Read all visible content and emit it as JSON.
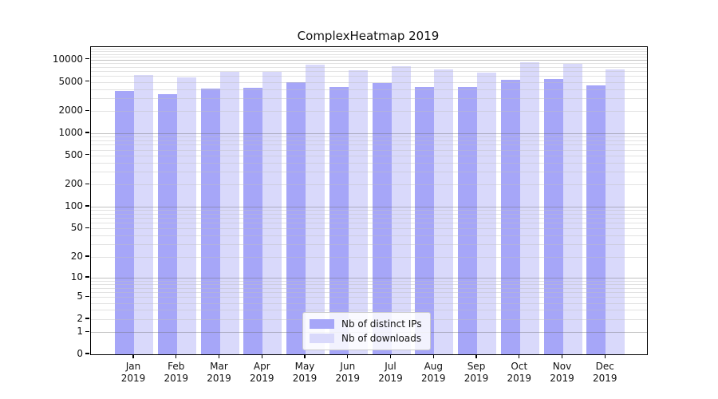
{
  "title": "ComplexHeatmap 2019",
  "chart_data": {
    "type": "bar",
    "title": "ComplexHeatmap 2019",
    "xlabel": "",
    "ylabel": "",
    "categories": [
      "Jan 2019",
      "Feb 2019",
      "Mar 2019",
      "Apr 2019",
      "May 2019",
      "Jun 2019",
      "Jul 2019",
      "Aug 2019",
      "Sep 2019",
      "Oct 2019",
      "Nov 2019",
      "Dec 2019"
    ],
    "series": [
      {
        "name": "Nb of distinct IPs",
        "color": "#a6a6f8",
        "values": [
          3760,
          3400,
          4080,
          4190,
          4900,
          4270,
          4800,
          4250,
          4230,
          5290,
          5420,
          4500
        ]
      },
      {
        "name": "Nb of downloads",
        "color": "#d9d9fb",
        "values": [
          6190,
          5690,
          6840,
          6840,
          8490,
          7120,
          8070,
          7370,
          6730,
          9230,
          8740,
          7330
        ]
      }
    ],
    "y_ticks": [
      0,
      1,
      2,
      5,
      10,
      20,
      50,
      100,
      200,
      500,
      1000,
      2000,
      5000,
      10000
    ],
    "y_scale": "log10(1+v)",
    "ylim": [
      0,
      14800
    ],
    "grid": true,
    "legend_position": "lower center",
    "axis_color": "#000000",
    "major_grid_color": "#c3c3c3",
    "minor_grid_color": "#e6e6e6"
  }
}
